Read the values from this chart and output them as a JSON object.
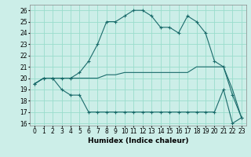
{
  "xlabel": "Humidex (Indice chaleur)",
  "background_color": "#cceee8",
  "grid_color": "#99ddcc",
  "line_color": "#1a6b6b",
  "xlim": [
    -0.5,
    23.5
  ],
  "ylim": [
    15.8,
    26.5
  ],
  "yticks": [
    16,
    17,
    18,
    19,
    20,
    21,
    22,
    23,
    24,
    25,
    26
  ],
  "xticks": [
    0,
    1,
    2,
    3,
    4,
    5,
    6,
    7,
    8,
    9,
    10,
    11,
    12,
    13,
    14,
    15,
    16,
    17,
    18,
    19,
    20,
    21,
    22,
    23
  ],
  "series_max": [
    19.5,
    20.0,
    20.0,
    20.0,
    20.0,
    20.5,
    21.5,
    23.0,
    25.0,
    25.0,
    25.5,
    26.0,
    26.0,
    25.5,
    24.5,
    24.5,
    24.0,
    25.5,
    25.0,
    24.0,
    21.5,
    21.0,
    18.5,
    16.5
  ],
  "series_mid": [
    19.5,
    20.0,
    20.0,
    20.0,
    20.0,
    20.0,
    20.0,
    20.0,
    20.3,
    20.3,
    20.5,
    20.5,
    20.5,
    20.5,
    20.5,
    20.5,
    20.5,
    20.5,
    21.0,
    21.0,
    21.0,
    21.0,
    19.0,
    16.5
  ],
  "series_min": [
    19.5,
    20.0,
    20.0,
    19.0,
    18.5,
    18.5,
    17.0,
    17.0,
    17.0,
    17.0,
    17.0,
    17.0,
    17.0,
    17.0,
    17.0,
    17.0,
    17.0,
    17.0,
    17.0,
    17.0,
    17.0,
    19.0,
    16.0,
    16.5
  ]
}
